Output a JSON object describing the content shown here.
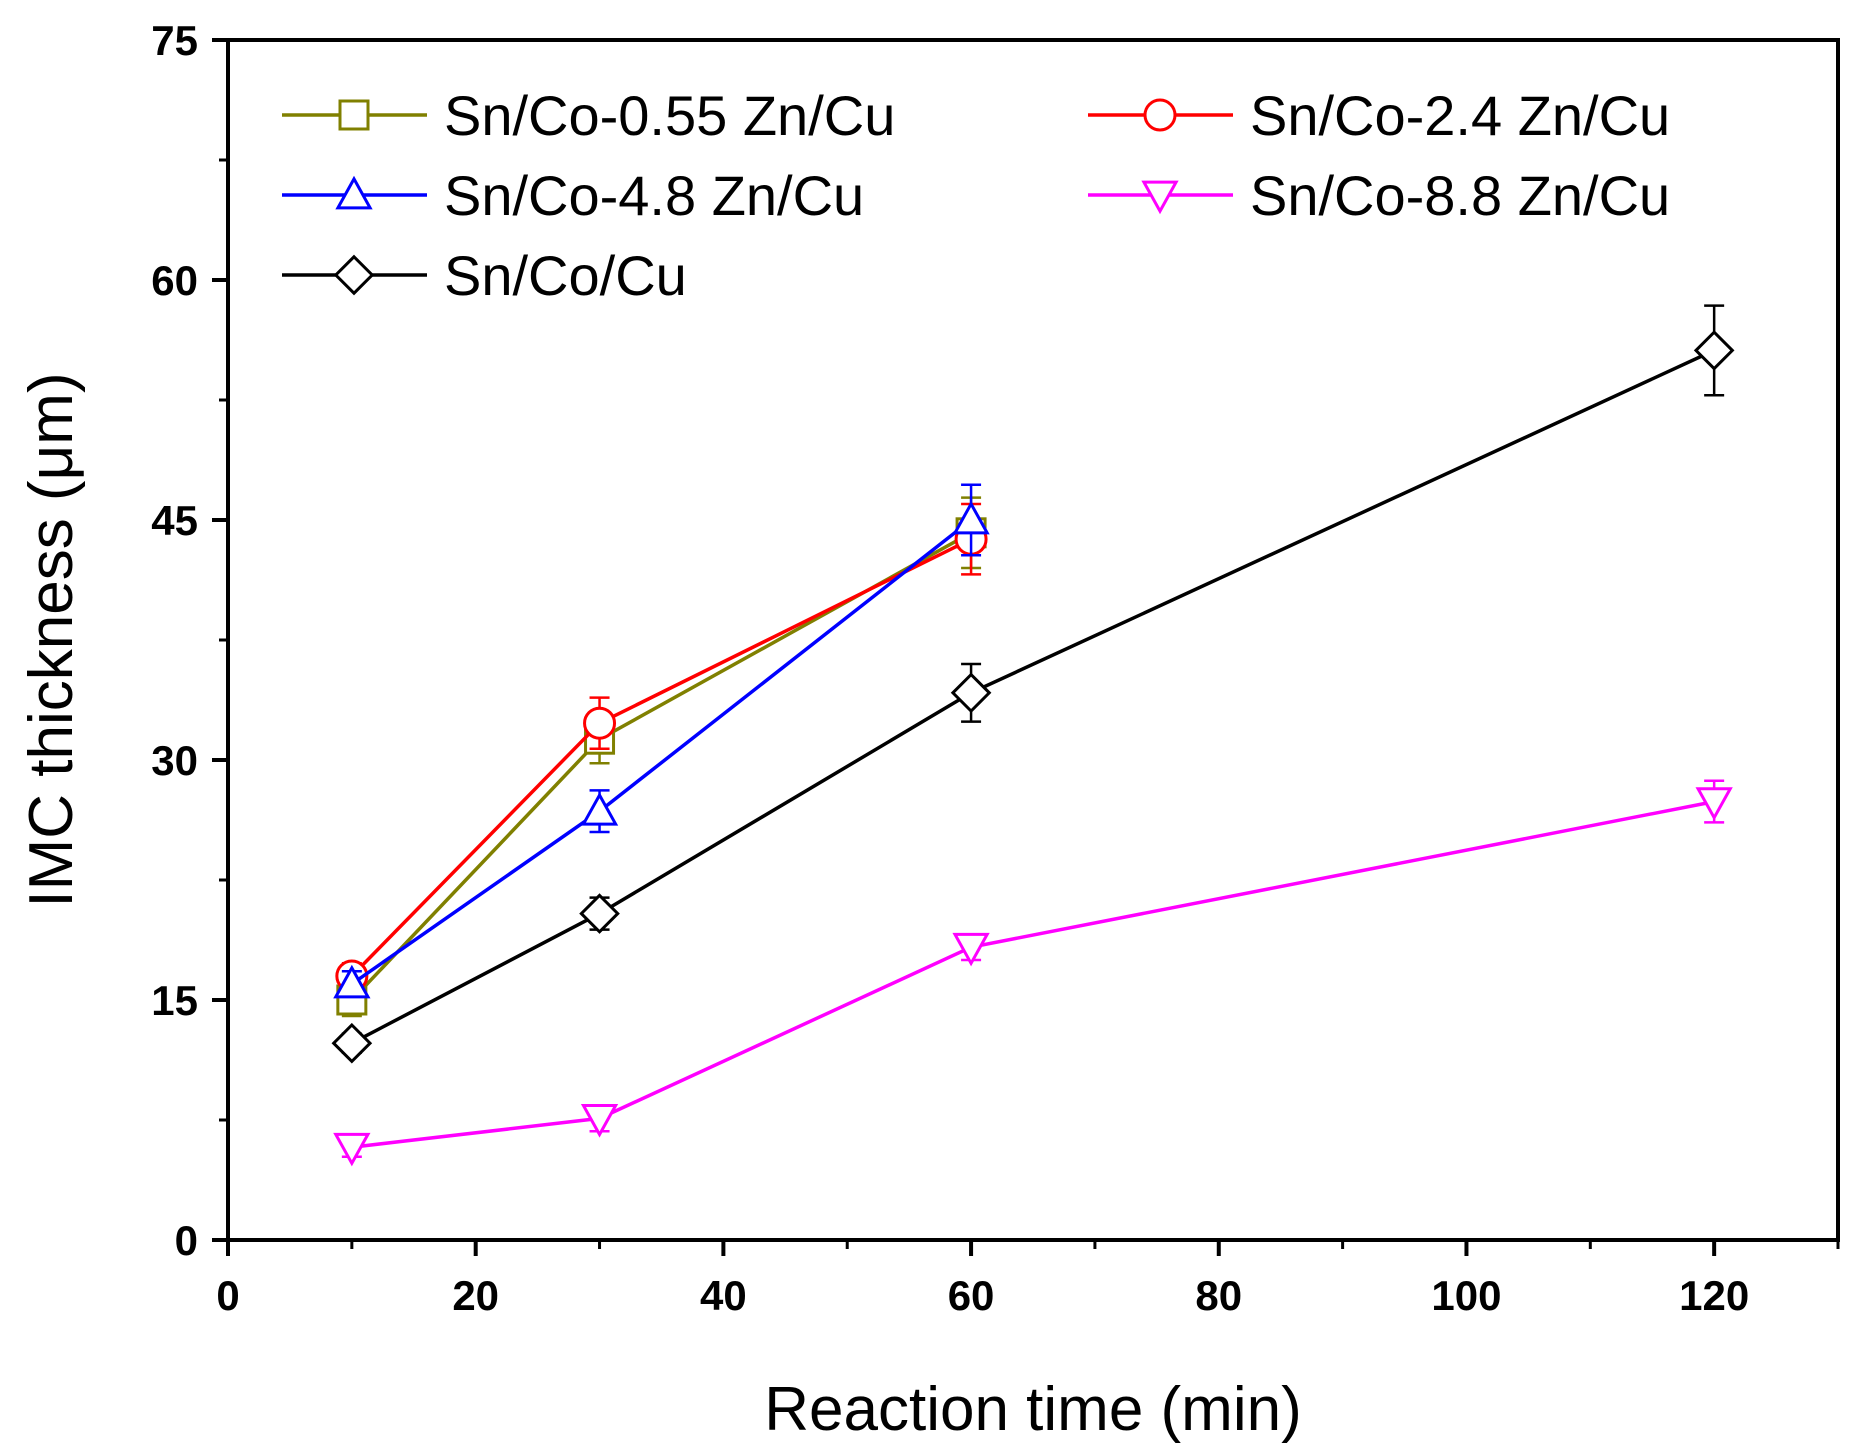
{
  "chart_data": {
    "type": "line",
    "title": "",
    "xlabel": "Reaction time (min)",
    "ylabel": "IMC thickness (μm)",
    "xlim": [
      0,
      130
    ],
    "ylim": [
      0,
      75
    ],
    "xticks": [
      0,
      20,
      40,
      60,
      80,
      100,
      120
    ],
    "yticks": [
      0,
      15,
      30,
      45,
      60,
      75
    ],
    "xtick_labels": [
      "0",
      "20",
      "40",
      "60",
      "80",
      "100",
      "120"
    ],
    "ytick_labels": [
      "0",
      "15",
      "30",
      "45",
      "60",
      "75"
    ],
    "grid": false,
    "legend_position": "top",
    "series": [
      {
        "name": "Sn/Co-0.55 Zn/Cu",
        "color": "#808000",
        "marker": "square",
        "x": [
          10,
          30,
          60
        ],
        "y": [
          15.0,
          31.3,
          44.2
        ],
        "err": [
          1.0,
          1.5,
          2.2
        ]
      },
      {
        "name": "Sn/Co-2.4 Zn/Cu",
        "color": "#ff0000",
        "marker": "circle",
        "x": [
          10,
          30,
          60
        ],
        "y": [
          16.5,
          32.3,
          43.8
        ],
        "err": [
          0.8,
          1.6,
          2.2
        ]
      },
      {
        "name": "Sn/Co-4.8 Zn/Cu",
        "color": "#0000ff",
        "marker": "triangle-up",
        "x": [
          10,
          30,
          60
        ],
        "y": [
          16.0,
          26.8,
          45.0
        ],
        "err": [
          0.8,
          1.3,
          2.2
        ]
      },
      {
        "name": "Sn/Co-8.8 Zn/Cu",
        "color": "#ff00ff",
        "marker": "triangle-down",
        "x": [
          10,
          30,
          120
        ],
        "y": [
          5.8,
          7.6,
          27.4
        ],
        "err": [
          0.6,
          0.8,
          1.3
        ],
        "x_full": [
          10,
          30,
          60,
          120
        ],
        "y_full": [
          5.8,
          7.6,
          18.3,
          27.4
        ],
        "err_full": [
          0.6,
          0.8,
          0.8,
          1.3
        ]
      },
      {
        "name": "Sn/Co/Cu",
        "color": "#000000",
        "marker": "diamond",
        "x": [
          10,
          30,
          60,
          120
        ],
        "y": [
          12.3,
          20.4,
          34.2,
          55.6
        ],
        "err": [
          0.6,
          1.0,
          1.8,
          2.8
        ]
      }
    ]
  }
}
